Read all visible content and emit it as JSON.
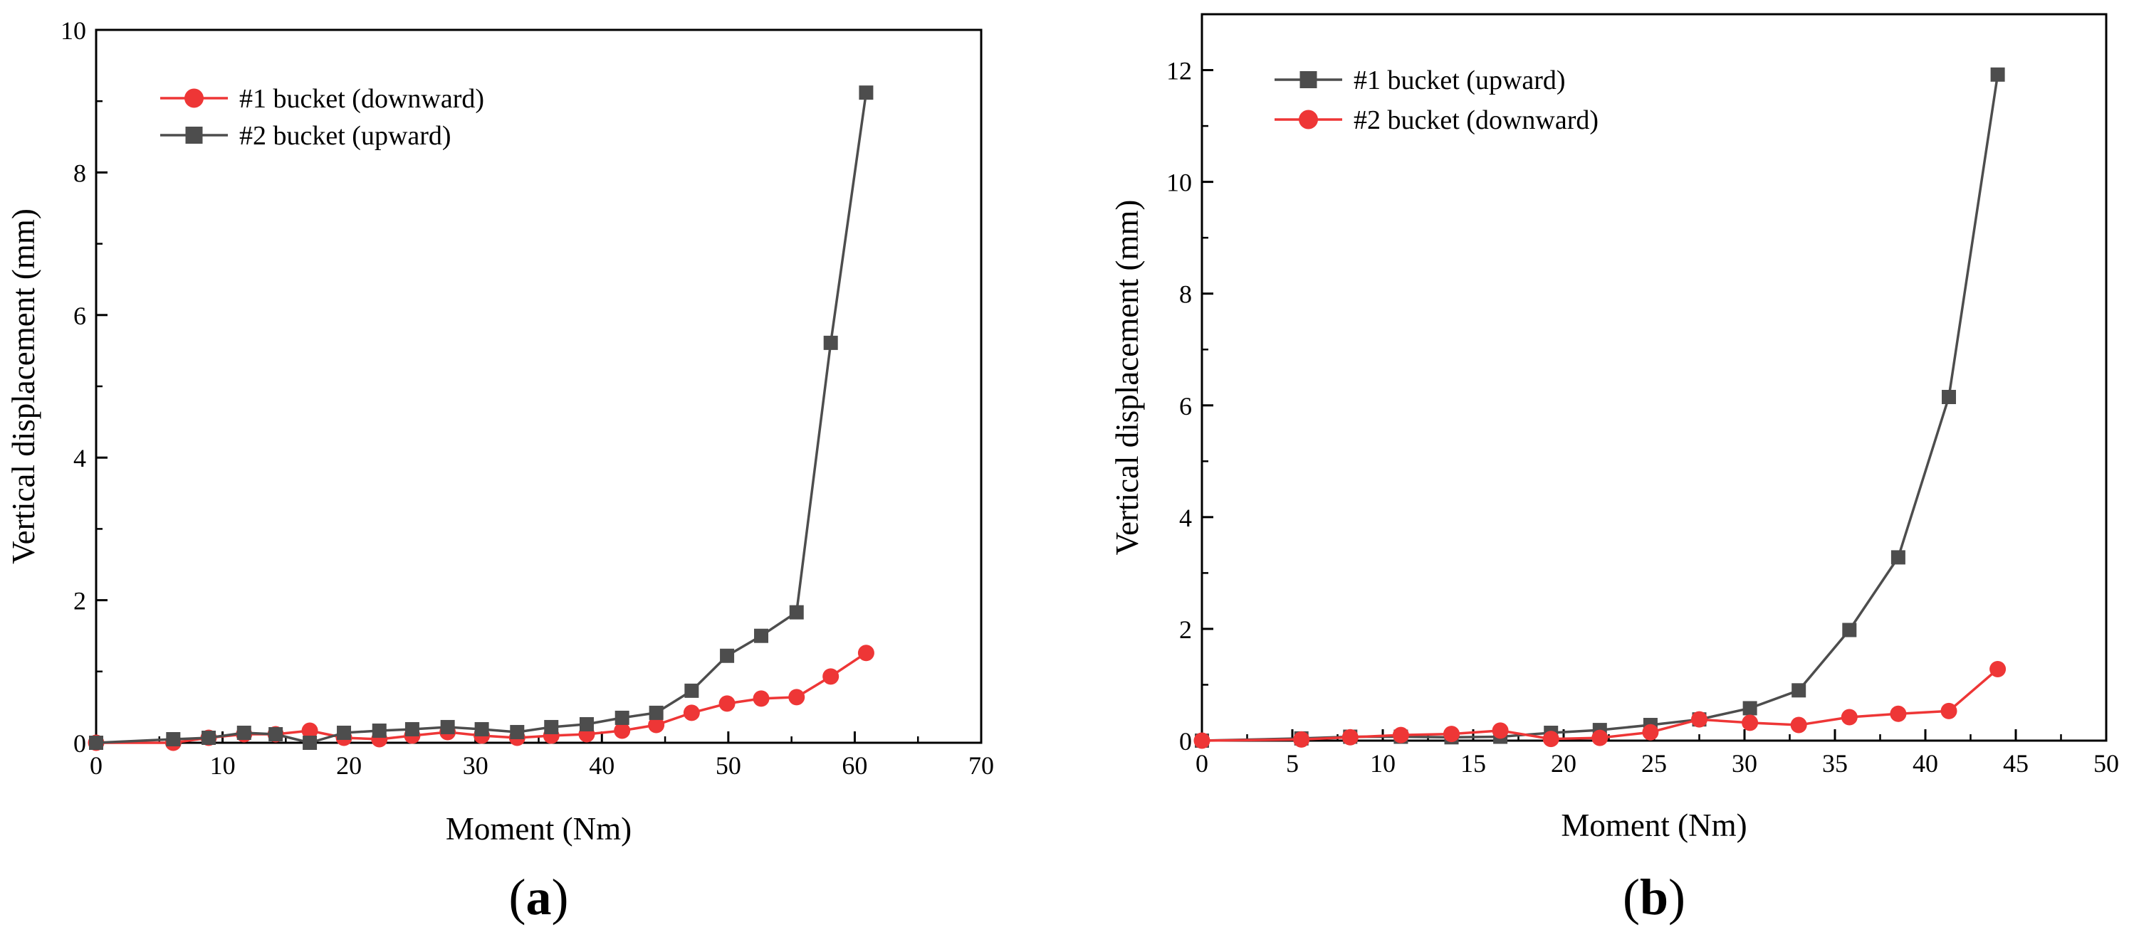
{
  "colors": {
    "red": "#ee3636",
    "gray": "#4d4d4d"
  },
  "chart_data": [
    {
      "type": "line",
      "panel_label": "(a)",
      "panel_letter": "a",
      "xlabel": "Moment (Nm)",
      "ylabel": "Vertical displacement (mm)",
      "xlim": [
        0,
        70
      ],
      "ylim": [
        0,
        10
      ],
      "xticks": [
        0,
        10,
        20,
        30,
        40,
        50,
        60,
        70
      ],
      "yticks": [
        0,
        2,
        4,
        6,
        8,
        10
      ],
      "legend_position": "top-left",
      "series": [
        {
          "name": "#1 bucket (downward)",
          "marker": "circle",
          "color": "#ee3636",
          "x": [
            0,
            6.1,
            8.9,
            11.7,
            14.2,
            16.9,
            19.6,
            22.4,
            25.0,
            27.8,
            30.5,
            33.3,
            36.0,
            38.8,
            41.6,
            44.3,
            47.1,
            49.9,
            52.6,
            55.4,
            58.1,
            60.9
          ],
          "y": [
            0,
            0.0,
            0.07,
            0.12,
            0.12,
            0.17,
            0.07,
            0.05,
            0.1,
            0.15,
            0.1,
            0.07,
            0.1,
            0.12,
            0.17,
            0.25,
            0.42,
            0.55,
            0.62,
            0.64,
            0.93,
            1.26
          ]
        },
        {
          "name": "#2 bucket (upward)",
          "marker": "square",
          "color": "#4d4d4d",
          "x": [
            0,
            6.1,
            8.9,
            11.7,
            14.2,
            16.9,
            19.6,
            22.4,
            25.0,
            27.8,
            30.5,
            33.3,
            36.0,
            38.8,
            41.6,
            44.3,
            47.1,
            49.9,
            52.6,
            55.4,
            58.1,
            60.9
          ],
          "y": [
            0,
            0.05,
            0.07,
            0.14,
            0.12,
            0.0,
            0.14,
            0.17,
            0.19,
            0.22,
            0.19,
            0.15,
            0.22,
            0.26,
            0.35,
            0.42,
            0.73,
            1.22,
            1.5,
            1.83,
            5.61,
            9.12
          ]
        }
      ]
    },
    {
      "type": "line",
      "panel_label": "(b)",
      "panel_letter": "b",
      "xlabel": "Moment (Nm)",
      "ylabel": "Vertical displacement (mm)",
      "xlim": [
        0,
        50
      ],
      "ylim": [
        0,
        13
      ],
      "xticks": [
        0,
        5,
        10,
        15,
        20,
        25,
        30,
        35,
        40,
        45,
        50
      ],
      "yticks": [
        0,
        2,
        4,
        6,
        8,
        10,
        12
      ],
      "legend_position": "top-left",
      "series": [
        {
          "name": "#1 bucket (upward)",
          "marker": "square",
          "color": "#4d4d4d",
          "x": [
            0,
            5.5,
            8.2,
            11.0,
            13.8,
            16.5,
            19.3,
            22.0,
            24.8,
            27.5,
            30.3,
            33.0,
            35.8,
            38.5,
            41.3,
            44.0
          ],
          "y": [
            0,
            0.04,
            0.07,
            0.07,
            0.06,
            0.07,
            0.14,
            0.19,
            0.28,
            0.38,
            0.58,
            0.9,
            1.98,
            3.28,
            6.15,
            11.92
          ]
        },
        {
          "name": "#2 bucket (downward)",
          "marker": "circle",
          "color": "#ee3636",
          "x": [
            0,
            5.5,
            8.2,
            11.0,
            13.8,
            16.5,
            19.3,
            22.0,
            24.8,
            27.5,
            30.3,
            33.0,
            35.8,
            38.5,
            41.3,
            44.0
          ],
          "y": [
            0,
            0.02,
            0.06,
            0.1,
            0.12,
            0.18,
            0.03,
            0.05,
            0.15,
            0.38,
            0.32,
            0.28,
            0.42,
            0.48,
            0.53,
            1.28
          ]
        }
      ]
    }
  ]
}
